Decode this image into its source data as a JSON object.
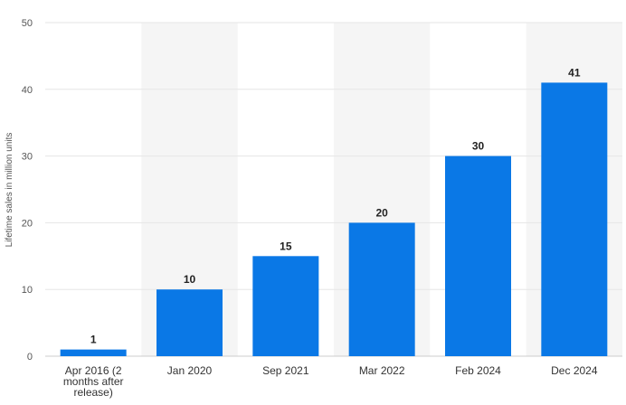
{
  "chart_data": {
    "type": "bar",
    "title": "",
    "xlabel": "",
    "ylabel": "Lifetime sales in million units",
    "categories": [
      [
        "Apr 2016 (2",
        "months after",
        "release)"
      ],
      [
        "Jan 2020"
      ],
      [
        "Sep 2021"
      ],
      [
        "Mar 2022"
      ],
      [
        "Feb 2024"
      ],
      [
        "Dec 2024"
      ]
    ],
    "values": [
      1,
      10,
      15,
      20,
      30,
      41
    ],
    "data_labels": [
      "1",
      "10",
      "15",
      "20",
      "30",
      "41"
    ],
    "ylim": [
      0,
      50
    ],
    "yticks": [
      0,
      10,
      20,
      30,
      40,
      50
    ],
    "grid": true,
    "alternating_column_shading": true,
    "colors": {
      "bar": "#0a78e6",
      "grid": "#e6e6e6",
      "band": "#f5f5f5"
    }
  }
}
